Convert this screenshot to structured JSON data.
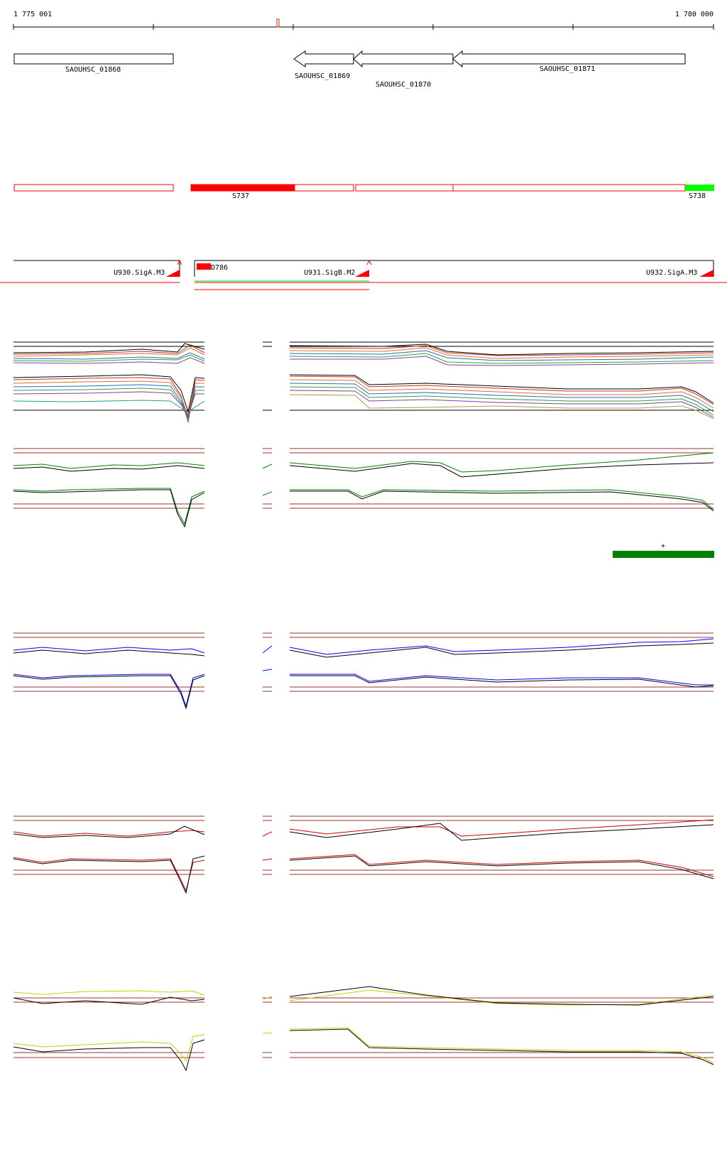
{
  "coordinates": {
    "start_label": "1 775 001",
    "end_label": "1 780 000"
  },
  "genes": [
    {
      "id": "SAOUHSC_01868",
      "strand": "+"
    },
    {
      "id": "SAOUHSC_01869",
      "strand": "-"
    },
    {
      "id": "SAOUHSC_01870",
      "strand": "-"
    },
    {
      "id": "SAOUHSC_01871",
      "strand": "-"
    }
  ],
  "segments": [
    {
      "label": "S737"
    },
    {
      "label": "S738"
    }
  ],
  "transcription_units": [
    {
      "label": "U930.SigA.M3"
    },
    {
      "label": "D786"
    },
    {
      "label": "U931.SigB.M2"
    },
    {
      "label": "U932.SigA.M3"
    }
  ],
  "marker": {
    "label": "+"
  },
  "colors": {
    "gene_outline": "#000000",
    "segment_outline": "#ff0000",
    "segment_red": "#ff0000",
    "segment_green": "#00ff00",
    "track_all": "multicolor",
    "track_green": "#008000",
    "track_blue": "#0000ff",
    "track_red": "#cc0000",
    "track_yellow": "#cccc00",
    "threshold": "#993333",
    "marker_bar": "#008000"
  }
}
